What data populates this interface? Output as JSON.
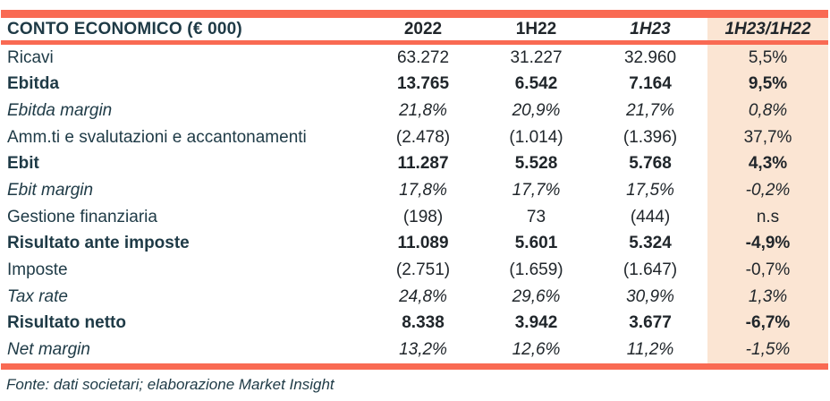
{
  "table": {
    "title": "CONTO ECONOMICO (€ 000)",
    "columns": [
      "2022",
      "1H22",
      "1H23",
      "1H23/1H22"
    ],
    "rows": [
      {
        "label": "Ricavi",
        "style": "regular",
        "values": [
          "63.272",
          "31.227",
          "32.960",
          "5,5%"
        ]
      },
      {
        "label": "Ebitda",
        "style": "bold",
        "values": [
          "13.765",
          "6.542",
          "7.164",
          "9,5%"
        ]
      },
      {
        "label": "Ebitda margin",
        "style": "italic",
        "values": [
          "21,8%",
          "20,9%",
          "21,7%",
          "0,8%"
        ]
      },
      {
        "label": "Amm.ti e svalutazioni e accantonamenti",
        "style": "regular",
        "values": [
          "(2.478)",
          "(1.014)",
          "(1.396)",
          "37,7%"
        ]
      },
      {
        "label": "Ebit",
        "style": "bold",
        "values": [
          "11.287",
          "5.528",
          "5.768",
          "4,3%"
        ]
      },
      {
        "label": "Ebit margin",
        "style": "italic",
        "values": [
          "17,8%",
          "17,7%",
          "17,5%",
          "-0,2%"
        ]
      },
      {
        "label": "Gestione finanziaria",
        "style": "regular",
        "values": [
          "(198)",
          "73",
          "(444)",
          "n.s"
        ]
      },
      {
        "label": "Risultato ante imposte",
        "style": "bold",
        "values": [
          "11.089",
          "5.601",
          "5.324",
          "-4,9%"
        ]
      },
      {
        "label": "Imposte",
        "style": "regular",
        "values": [
          "(2.751)",
          "(1.659)",
          "(1.647)",
          "-0,7%"
        ]
      },
      {
        "label": "Tax rate",
        "style": "italic",
        "values": [
          "24,8%",
          "29,6%",
          "30,9%",
          "1,3%"
        ]
      },
      {
        "label": "Risultato netto",
        "style": "bold",
        "values": [
          "8.338",
          "3.942",
          "3.677",
          "-6,7%"
        ]
      },
      {
        "label": "Net margin",
        "style": "italic",
        "values": [
          "13,2%",
          "12,6%",
          "11,2%",
          "-1,5%"
        ]
      }
    ],
    "footer": "Fonte: dati societari; elaborazione Market Insight",
    "colors": {
      "accent_bar": "#F96A53",
      "highlight_column_bg": "#FBE5D3",
      "label_text": "#1E3A46",
      "number_text": "#20262B"
    }
  }
}
